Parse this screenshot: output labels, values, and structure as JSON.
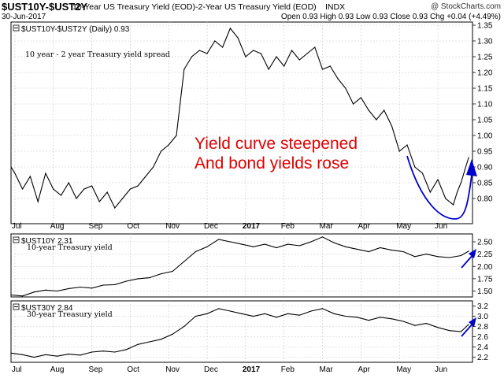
{
  "header": {
    "symbol": "$UST10Y-$UST2Y",
    "description": "10-Year US Treasury Yield (EOD)-2-Year US Treasury Yield (EOD)",
    "index_tag": "INDX",
    "date": "30-Jun-2017",
    "logo": "@ StockCharts.com",
    "ohlc": "Open 0.93  High 0.93  Low 0.93  Close 0.93  Chg +0.04 (+4.49%)"
  },
  "annotation": {
    "line1": "Yield curve steepened",
    "line2": "And bond yields rose",
    "text_color": "#e00000",
    "arrow_color": "#0000cc"
  },
  "chart_data": [
    {
      "type": "line",
      "legend": "$UST10Y-$UST2Y (Daily) 0.93",
      "title": "10 year - 2 year Treasury yield spread",
      "yticks": [
        "1.35",
        "1.30",
        "1.25",
        "1.20",
        "1.15",
        "1.10",
        "1.05",
        "1.00",
        "0.95",
        "0.90",
        "0.85",
        "0.80"
      ],
      "ylim": [
        0.72,
        1.36
      ],
      "xlim": [
        0,
        12
      ],
      "x_labels": [
        "Jul",
        "Aug",
        "Sep",
        "Oct",
        "Nov",
        "Dec",
        "2017",
        "Feb",
        "Mar",
        "Apr",
        "May",
        "Jun"
      ],
      "series": [
        {
          "x": [
            0,
            0.1,
            0.3,
            0.5,
            0.7,
            0.9,
            1.1,
            1.3,
            1.5,
            1.7,
            1.9,
            2.1,
            2.3,
            2.5,
            2.7,
            2.9,
            3.1,
            3.3,
            3.5,
            3.7,
            3.9,
            4.1,
            4.3,
            4.5,
            4.7,
            4.9,
            5.1,
            5.3,
            5.5,
            5.7,
            5.9,
            6.1,
            6.3,
            6.5,
            6.7,
            6.9,
            7.1,
            7.3,
            7.5,
            7.7,
            7.9,
            8.1,
            8.3,
            8.5,
            8.7,
            8.9,
            9.1,
            9.3,
            9.5,
            9.7,
            9.9,
            10.1,
            10.3,
            10.5,
            10.7,
            10.9,
            11.1,
            11.3,
            11.5,
            11.6,
            11.7,
            11.8,
            11.9
          ],
          "y": [
            0.9,
            0.88,
            0.83,
            0.87,
            0.79,
            0.88,
            0.83,
            0.81,
            0.85,
            0.8,
            0.83,
            0.84,
            0.79,
            0.82,
            0.77,
            0.8,
            0.83,
            0.84,
            0.87,
            0.9,
            0.95,
            0.97,
            1.0,
            1.21,
            1.25,
            1.27,
            1.26,
            1.3,
            1.28,
            1.34,
            1.31,
            1.25,
            1.27,
            1.26,
            1.21,
            1.25,
            1.22,
            1.27,
            1.24,
            1.26,
            1.28,
            1.21,
            1.22,
            1.18,
            1.15,
            1.1,
            1.12,
            1.08,
            1.05,
            1.08,
            1.03,
            0.95,
            0.97,
            0.9,
            0.88,
            0.82,
            0.86,
            0.8,
            0.78,
            0.82,
            0.85,
            0.89,
            0.93
          ]
        }
      ]
    },
    {
      "type": "line",
      "legend": "$UST10Y 2.31",
      "title": "10-year Treasury yield",
      "yticks": [
        "2.50",
        "2.25",
        "2.00",
        "1.75",
        "1.50"
      ],
      "ylim": [
        1.38,
        2.66
      ],
      "xlim": [
        0,
        12
      ],
      "series": [
        {
          "x": [
            0,
            0.3,
            0.6,
            0.9,
            1.2,
            1.5,
            1.8,
            2.1,
            2.4,
            2.7,
            3.0,
            3.3,
            3.6,
            3.9,
            4.2,
            4.5,
            4.8,
            5.1,
            5.4,
            5.7,
            6.0,
            6.3,
            6.6,
            6.9,
            7.2,
            7.5,
            7.8,
            8.1,
            8.4,
            8.7,
            9.0,
            9.3,
            9.6,
            9.9,
            10.2,
            10.5,
            10.8,
            11.1,
            11.4,
            11.7,
            11.9
          ],
          "y": [
            1.42,
            1.4,
            1.48,
            1.52,
            1.5,
            1.55,
            1.58,
            1.56,
            1.62,
            1.63,
            1.7,
            1.75,
            1.77,
            1.85,
            1.9,
            2.1,
            2.3,
            2.4,
            2.55,
            2.5,
            2.45,
            2.4,
            2.45,
            2.38,
            2.45,
            2.42,
            2.5,
            2.6,
            2.48,
            2.4,
            2.35,
            2.3,
            2.38,
            2.33,
            2.3,
            2.2,
            2.25,
            2.2,
            2.18,
            2.22,
            2.31
          ]
        }
      ]
    },
    {
      "type": "line",
      "legend": "$UST30Y 2.84",
      "title": "30-year Treasury yield",
      "yticks": [
        "3.2",
        "3.0",
        "2.8",
        "2.6",
        "2.4",
        "2.2"
      ],
      "ylim": [
        2.1,
        3.3
      ],
      "xlim": [
        0,
        12
      ],
      "series": [
        {
          "x": [
            0,
            0.3,
            0.6,
            0.9,
            1.2,
            1.5,
            1.8,
            2.1,
            2.4,
            2.7,
            3.0,
            3.3,
            3.6,
            3.9,
            4.2,
            4.5,
            4.8,
            5.1,
            5.4,
            5.7,
            6.0,
            6.3,
            6.6,
            6.9,
            7.2,
            7.5,
            7.8,
            8.1,
            8.4,
            8.7,
            9.0,
            9.3,
            9.6,
            9.9,
            10.2,
            10.5,
            10.8,
            11.1,
            11.4,
            11.7,
            11.9
          ],
          "y": [
            2.28,
            2.25,
            2.2,
            2.25,
            2.22,
            2.26,
            2.24,
            2.3,
            2.32,
            2.3,
            2.35,
            2.45,
            2.5,
            2.55,
            2.65,
            2.8,
            3.0,
            3.05,
            3.15,
            3.1,
            3.05,
            3.0,
            3.05,
            2.98,
            3.05,
            3.02,
            3.1,
            3.15,
            3.05,
            3.0,
            2.98,
            2.92,
            2.98,
            2.95,
            2.9,
            2.82,
            2.86,
            2.78,
            2.72,
            2.7,
            2.84
          ]
        }
      ]
    }
  ]
}
